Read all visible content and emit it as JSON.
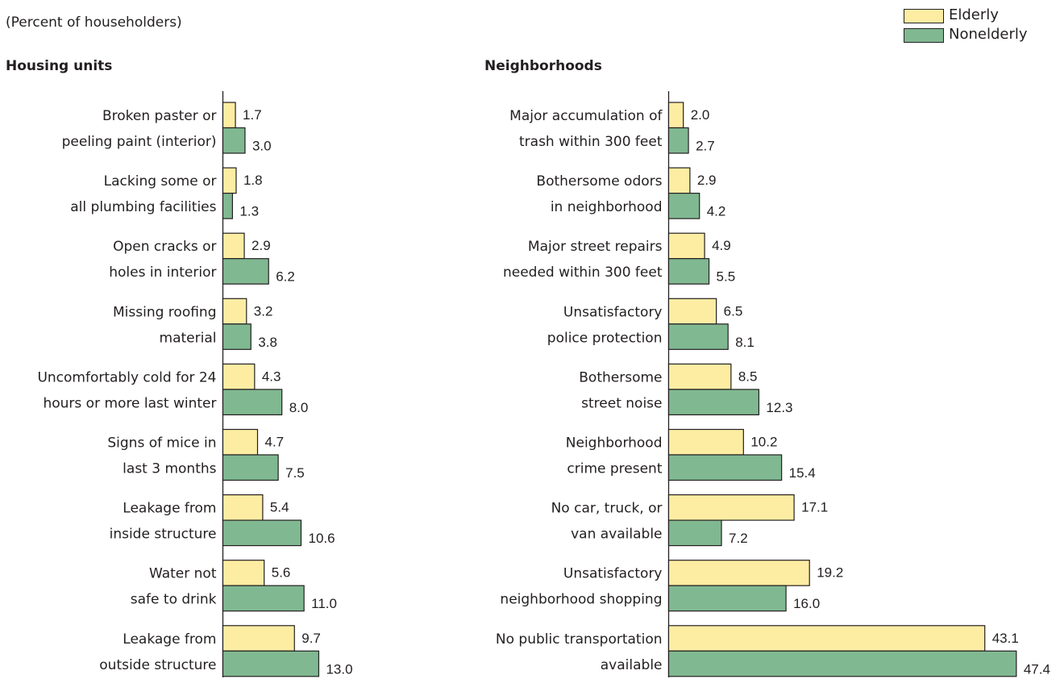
{
  "subtitle": "(Percent of householders)",
  "legend": {
    "elderly": "Elderly",
    "nonelderly": "Nonelderly"
  },
  "colors": {
    "elderly": "#fdeda3",
    "nonelderly": "#80b891",
    "outline": "#231f20"
  },
  "chart_data": [
    {
      "type": "bar",
      "orientation": "horizontal",
      "title": "Housing units",
      "categories": [
        [
          "Broken paster or",
          "peeling paint (interior)"
        ],
        [
          "Lacking some or",
          "all plumbing facilities"
        ],
        [
          "Open cracks or",
          "holes in interior"
        ],
        [
          "Missing roofing",
          "material"
        ],
        [
          "Uncomfortably cold for 24",
          "hours or more last winter"
        ],
        [
          "Signs of mice in",
          "last 3 months"
        ],
        [
          "Leakage from",
          "inside structure"
        ],
        [
          "Water not",
          "safe to drink"
        ],
        [
          "Leakage from",
          "outside structure"
        ]
      ],
      "series": [
        {
          "name": "Elderly",
          "values": [
            1.7,
            1.8,
            2.9,
            3.2,
            4.3,
            4.7,
            5.4,
            5.6,
            9.7
          ],
          "labels": [
            "1.7",
            "1.8",
            "2.9",
            "3.2",
            "4.3",
            "4.7",
            "5.4",
            "5.6",
            "9.7"
          ]
        },
        {
          "name": "Nonelderly",
          "values": [
            3.0,
            1.3,
            6.2,
            3.8,
            8.0,
            7.5,
            10.6,
            11.0,
            13.0
          ],
          "labels": [
            "3.0",
            "1.3",
            "6.2",
            "3.8",
            "8.0",
            "7.5",
            "10.6",
            "11.0",
            "13.0"
          ]
        }
      ],
      "xlim": [
        0,
        50
      ]
    },
    {
      "type": "bar",
      "orientation": "horizontal",
      "title": "Neighborhoods",
      "categories": [
        [
          "Major accumulation of",
          "trash within 300 feet"
        ],
        [
          "Bothersome odors",
          "in neighborhood"
        ],
        [
          "Major street repairs",
          "needed within 300 feet"
        ],
        [
          "Unsatisfactory",
          "police protection"
        ],
        [
          "Bothersome",
          "street noise"
        ],
        [
          "Neighborhood",
          "crime present"
        ],
        [
          "No car, truck, or",
          "van available"
        ],
        [
          "Unsatisfactory",
          "neighborhood shopping"
        ],
        [
          "No public transportation",
          "available"
        ]
      ],
      "series": [
        {
          "name": "Elderly",
          "values": [
            2.0,
            2.9,
            4.9,
            6.5,
            8.5,
            10.2,
            17.1,
            19.2,
            43.1
          ],
          "labels": [
            "2.0",
            "2.9",
            "4.9",
            "6.5",
            "8.5",
            "10.2",
            "17.1",
            "19.2",
            "43.1"
          ]
        },
        {
          "name": "Nonelderly",
          "values": [
            2.7,
            4.2,
            5.5,
            8.1,
            12.3,
            15.4,
            7.2,
            16.0,
            47.4
          ],
          "labels": [
            "2.7",
            "4.2",
            "5.5",
            "8.1",
            "12.3",
            "15.4",
            "7.2",
            "16.0",
            "47.4"
          ]
        }
      ],
      "xlim": [
        0,
        50
      ]
    }
  ]
}
